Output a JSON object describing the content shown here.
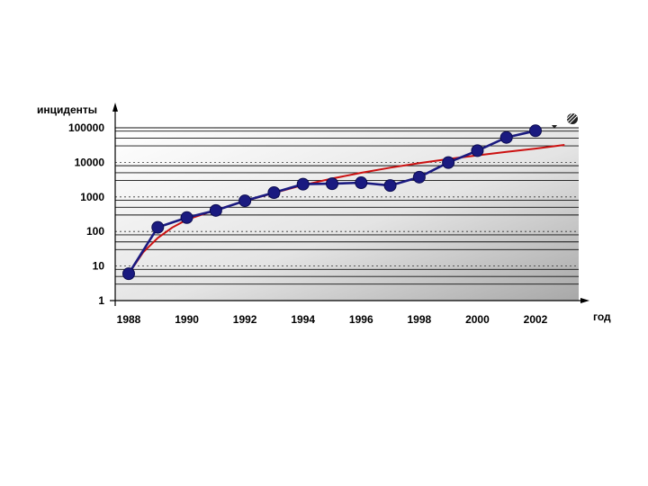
{
  "chart_data": {
    "type": "line",
    "title": "",
    "xlabel": "год",
    "ylabel": "инциденты",
    "y_scale": "log",
    "ylim": [
      1,
      100000
    ],
    "xlim": [
      1988,
      2003
    ],
    "x_tick_labels": [
      "1988",
      "1990",
      "1992",
      "1994",
      "1996",
      "1998",
      "2000",
      "2002"
    ],
    "y_tick_labels": [
      "1",
      "10",
      "100",
      "1000",
      "10000",
      "100000"
    ],
    "grid": true,
    "series": [
      {
        "type": "line-markers",
        "color": "#1a1a80",
        "x": [
          1988,
          1989,
          1990,
          1991,
          1992,
          1993,
          1994,
          1995,
          1996,
          1997,
          1998,
          1999,
          2000,
          2001,
          2002
        ],
        "y": [
          6,
          132,
          252,
          406,
          773,
          1334,
          2340,
          2412,
          2573,
          2134,
          3734,
          9859,
          21756,
          52658,
          82094
        ]
      },
      {
        "type": "trend",
        "color": "#cc1111",
        "x": [
          1988,
          1988.5,
          1989,
          1989.5,
          1990,
          1991,
          1992,
          1993,
          1994,
          1995,
          1996,
          1997,
          1998,
          1999,
          2000,
          2001,
          2002,
          2003
        ],
        "y": [
          6,
          25,
          65,
          130,
          220,
          420,
          760,
          1300,
          2200,
          3400,
          5000,
          7000,
          9500,
          12500,
          16000,
          20000,
          25000,
          32000
        ]
      }
    ],
    "decoration_icon": "striped-globe-icon"
  }
}
